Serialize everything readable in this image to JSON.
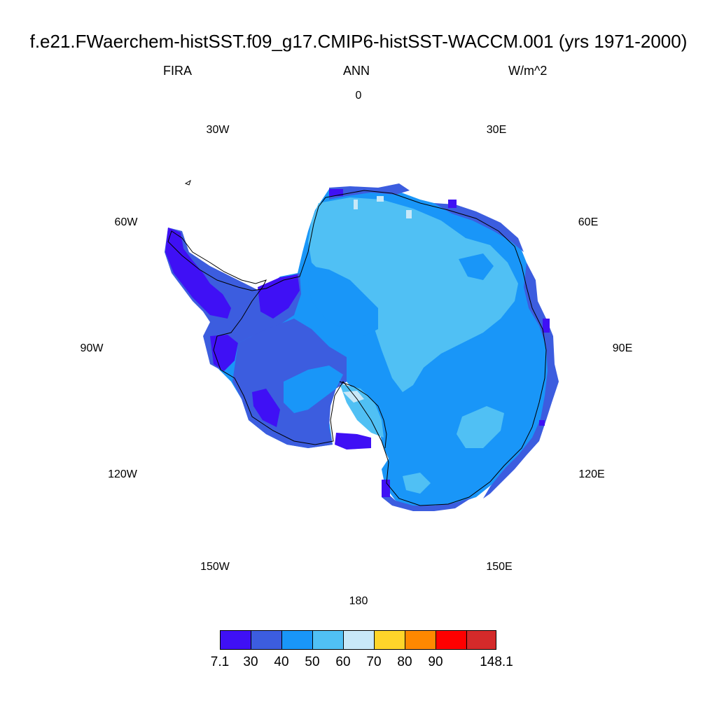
{
  "title": "f.e21.FWaerchem-histSST.f09_g17.CMIP6-histSST-WACCM.001 (yrs 1971-2000)",
  "left_label": "FIRA",
  "center_label": "ANN",
  "right_label": "W/m^2",
  "longitude_labels": {
    "lon_0": "0",
    "lon_30e": "30E",
    "lon_60e": "60E",
    "lon_90e": "90E",
    "lon_120e": "120E",
    "lon_150e": "150E",
    "lon_180": "180",
    "lon_150w": "150W",
    "lon_120w": "120W",
    "lon_90w": "90W",
    "lon_60w": "60W",
    "lon_30w": "30W"
  },
  "projection": "south polar stereographic",
  "colorbar": {
    "colors": [
      "#3f10f5",
      "#3c5ddf",
      "#1996f8",
      "#50c0f4",
      "#c8e8f8",
      "#ffd52a",
      "#ff8800",
      "#ff0000",
      "#d42a2a"
    ],
    "labels": [
      "7.1",
      "30",
      "40",
      "50",
      "60",
      "70",
      "80",
      "90",
      "148.1"
    ]
  },
  "map_colors": {
    "c7": "#3f10f5",
    "c30": "#3c5ddf",
    "c40": "#1996f8",
    "c50": "#50c0f4",
    "c60": "#c8e8f8"
  }
}
